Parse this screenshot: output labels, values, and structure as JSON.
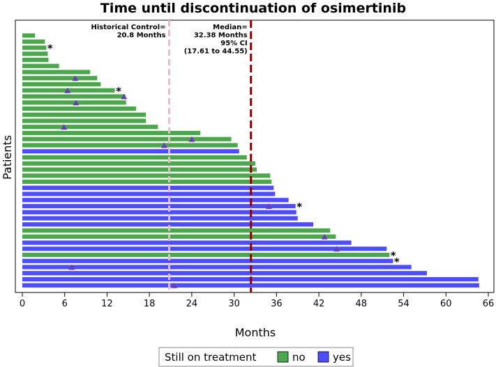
{
  "chart_data": {
    "type": "bar",
    "orientation": "horizontal",
    "title": "Time until discontinuation of osimertinib",
    "xlabel": "Months",
    "ylabel": "Patients",
    "xlim": [
      0,
      67
    ],
    "xticks": [
      0,
      6,
      12,
      18,
      24,
      30,
      36,
      42,
      48,
      54,
      60,
      66
    ],
    "colors": {
      "no": "#4ca64c",
      "yes": "#4d4dff",
      "triangle": "#6a3db8",
      "historical_line": "#f4b6c8",
      "median_line": "#8b0000"
    },
    "reference_lines": [
      {
        "name": "historical-control",
        "x": 20.8,
        "label_lines": [
          "Historical Control=",
          "20.8 Months"
        ]
      },
      {
        "name": "median",
        "x": 32.38,
        "label_lines": [
          "Median=",
          "32.38 Months",
          "95% CI",
          "(17.61 to 44.55)"
        ]
      }
    ],
    "patients": [
      {
        "value": 1.8,
        "status": "no"
      },
      {
        "value": 3.2,
        "status": "no"
      },
      {
        "value": 3.4,
        "status": "no",
        "star": true
      },
      {
        "value": 3.6,
        "status": "no"
      },
      {
        "value": 3.7,
        "status": "no"
      },
      {
        "value": 5.2,
        "status": "no"
      },
      {
        "value": 9.6,
        "status": "no"
      },
      {
        "value": 10.6,
        "status": "no",
        "triangle": 7.5
      },
      {
        "value": 11.1,
        "status": "no"
      },
      {
        "value": 13.1,
        "status": "no",
        "triangle": 6.4,
        "star": true
      },
      {
        "value": 14.6,
        "status": "no",
        "triangle": 14.4
      },
      {
        "value": 14.7,
        "status": "no",
        "triangle": 7.6
      },
      {
        "value": 16.1,
        "status": "no"
      },
      {
        "value": 17.5,
        "status": "no"
      },
      {
        "value": 17.5,
        "status": "no"
      },
      {
        "value": 19.2,
        "status": "no",
        "triangle": 5.9
      },
      {
        "value": 25.2,
        "status": "no"
      },
      {
        "value": 29.6,
        "status": "no",
        "triangle": 24.0
      },
      {
        "value": 30.5,
        "status": "no",
        "triangle": 20.1
      },
      {
        "value": 30.7,
        "status": "yes"
      },
      {
        "value": 31.8,
        "status": "no"
      },
      {
        "value": 33.0,
        "status": "no"
      },
      {
        "value": 33.2,
        "status": "no"
      },
      {
        "value": 35.1,
        "status": "no"
      },
      {
        "value": 35.3,
        "status": "no"
      },
      {
        "value": 35.6,
        "status": "yes"
      },
      {
        "value": 35.8,
        "status": "yes"
      },
      {
        "value": 37.7,
        "status": "yes"
      },
      {
        "value": 38.7,
        "status": "yes",
        "triangle": 34.9,
        "star": true
      },
      {
        "value": 38.8,
        "status": "yes"
      },
      {
        "value": 39.0,
        "status": "yes"
      },
      {
        "value": 41.2,
        "status": "yes"
      },
      {
        "value": 43.6,
        "status": "no"
      },
      {
        "value": 44.4,
        "status": "no",
        "triangle": 42.8
      },
      {
        "value": 46.6,
        "status": "yes"
      },
      {
        "value": 51.6,
        "status": "yes",
        "triangle": 44.5
      },
      {
        "value": 52.0,
        "status": "no",
        "star": true
      },
      {
        "value": 52.5,
        "status": "yes",
        "star": true
      },
      {
        "value": 55.1,
        "status": "yes",
        "triangle": 7.0
      },
      {
        "value": 57.3,
        "status": "yes"
      },
      {
        "value": 64.6,
        "status": "yes"
      },
      {
        "value": 64.7,
        "status": "yes",
        "triangle": 21.5
      }
    ],
    "legend": {
      "title": "Still on treatment",
      "position": "bottom-center",
      "entries": [
        {
          "label": "no",
          "status": "no"
        },
        {
          "label": "yes",
          "status": "yes"
        }
      ]
    },
    "marker_symbols": {
      "star": "*",
      "triangle": "▲"
    }
  }
}
